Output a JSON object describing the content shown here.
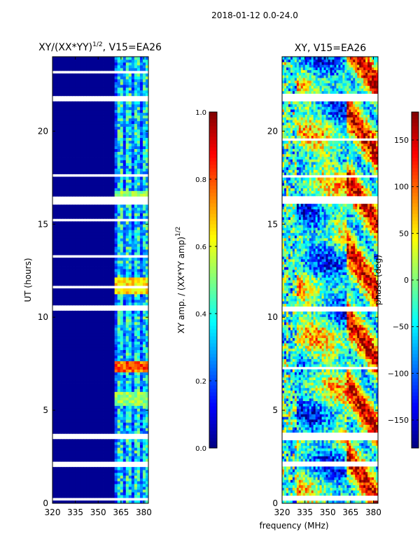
{
  "suptitle": "2018-01-12 0.0-24.0",
  "xlabel_shared": "frequency (MHz)",
  "colors": {
    "jet": [
      "#00007f",
      "#0000ff",
      "#007fff",
      "#00ffff",
      "#7fff7f",
      "#ffff00",
      "#ff7f00",
      "#ff0000",
      "#7f0000"
    ],
    "frame": "#000000",
    "gap": "#ffffff"
  },
  "chart_data": [
    {
      "type": "heatmap",
      "title_main": "XY/(XX*YY)",
      "title_sup": "1/2",
      "title_tail": ", V15=EA26",
      "xlabel": "",
      "ylabel": "UT (hours)",
      "xlim": [
        320,
        383
      ],
      "ylim": [
        0,
        24
      ],
      "xticks": [
        320,
        335,
        350,
        365,
        380
      ],
      "yticks": [
        0,
        5,
        10,
        15,
        20
      ],
      "colorbar": {
        "label_main": "XY amp. / (XX*YY amp)",
        "label_sup": "1/2",
        "range": [
          0.0,
          1.0
        ],
        "ticks": [
          "0.0",
          "0.2",
          "0.4",
          "0.6",
          "0.8",
          "1.0"
        ],
        "tick_values": [
          0.0,
          0.2,
          0.4,
          0.6,
          0.8,
          1.0
        ]
      },
      "background_value": 0.02,
      "band_freq_range": [
        360,
        383
      ],
      "band_value_range": [
        0.2,
        0.55
      ],
      "hot_rows_ut": [
        [
          7.1,
          7.7,
          0.9
        ],
        [
          11.3,
          12.1,
          0.75
        ],
        [
          5.3,
          6.0,
          0.6
        ],
        [
          16.3,
          16.8,
          0.6
        ]
      ],
      "gaps_ut": [
        [
          0.2,
          0.35
        ],
        [
          2.0,
          2.25
        ],
        [
          3.4,
          3.75
        ],
        [
          6.1,
          6.2
        ],
        [
          7.3,
          7.4
        ],
        [
          7.9,
          8.0
        ],
        [
          8.8,
          8.9
        ],
        [
          10.3,
          10.6
        ],
        [
          11.6,
          11.7
        ],
        [
          13.2,
          13.3
        ],
        [
          15.2,
          15.3
        ],
        [
          16.0,
          16.5
        ],
        [
          17.5,
          17.7
        ],
        [
          19.6,
          19.7
        ],
        [
          21.6,
          21.9
        ],
        [
          23.1,
          23.2
        ],
        [
          23.5,
          23.6
        ]
      ]
    },
    {
      "type": "heatmap",
      "title_main": "XY, V15=EA26",
      "xlabel": "",
      "ylabel": "",
      "xlim": [
        320,
        383
      ],
      "ylim": [
        0,
        24
      ],
      "xticks": [
        320,
        335,
        350,
        365,
        380
      ],
      "yticks": [
        0,
        5,
        10,
        15,
        20
      ],
      "colorbar": {
        "label_main": "phase (deg)",
        "range": [
          -180,
          180
        ],
        "ticks": [
          "−150",
          "−100",
          "−50",
          "0",
          "50",
          "100",
          "150"
        ],
        "tick_values": [
          -150,
          -100,
          -50,
          0,
          50,
          100,
          150
        ]
      },
      "gaps_ut": [
        [
          0.2,
          0.4
        ],
        [
          2.0,
          2.3
        ],
        [
          3.4,
          3.8
        ],
        [
          7.2,
          7.4
        ],
        [
          10.3,
          10.6
        ],
        [
          12.8,
          12.9
        ],
        [
          16.1,
          16.5
        ],
        [
          17.5,
          17.7
        ],
        [
          19.5,
          19.6
        ],
        [
          21.6,
          22.0
        ],
        [
          23.1,
          23.2
        ]
      ]
    }
  ]
}
